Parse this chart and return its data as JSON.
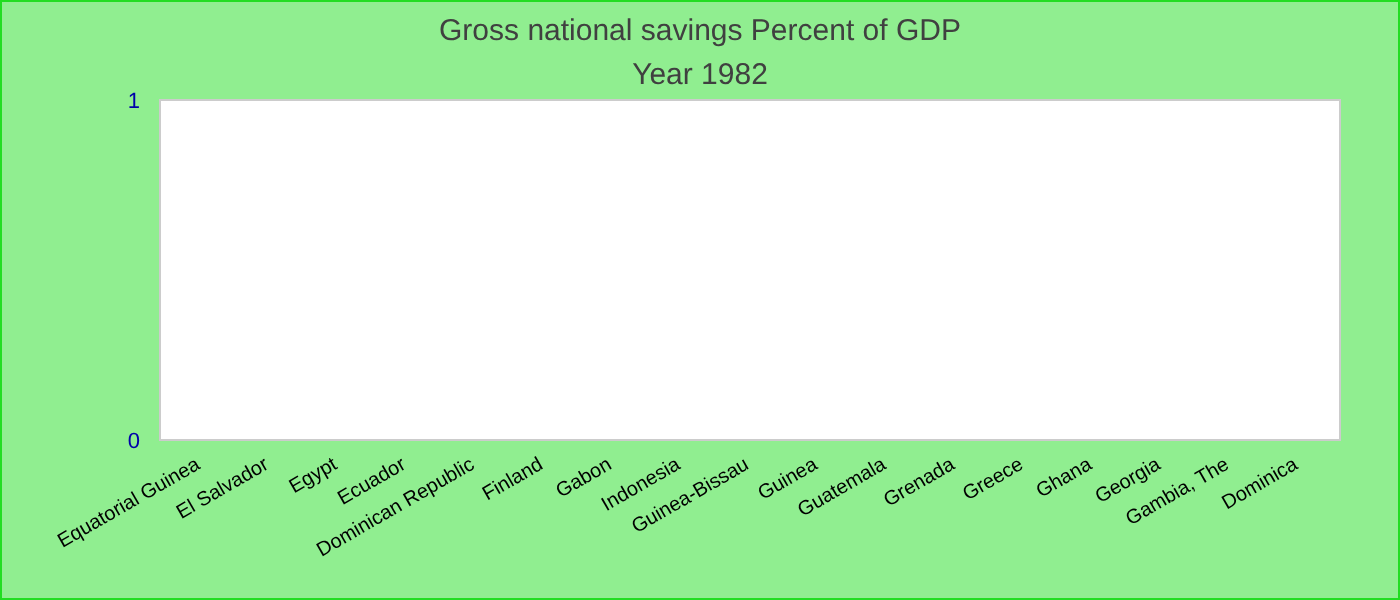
{
  "chart_data": {
    "type": "bar",
    "title": "Gross national savings  Percent of GDP",
    "subtitle": "Year 1982",
    "categories": [
      "Equatorial Guinea",
      "El Salvador",
      "Egypt",
      "Ecuador",
      "Dominican Republic",
      "Finland",
      "Gabon",
      "Indonesia",
      "Guinea-Bissau",
      "Guinea",
      "Guatemala",
      "Grenada",
      "Greece",
      "Ghana",
      "Georgia",
      "Gambia, The",
      "Dominica"
    ],
    "values": [
      null,
      null,
      null,
      null,
      null,
      null,
      null,
      null,
      null,
      null,
      null,
      null,
      null,
      null,
      null,
      null,
      null
    ],
    "ylim": [
      0,
      1
    ],
    "yticks": [
      0,
      1
    ]
  }
}
